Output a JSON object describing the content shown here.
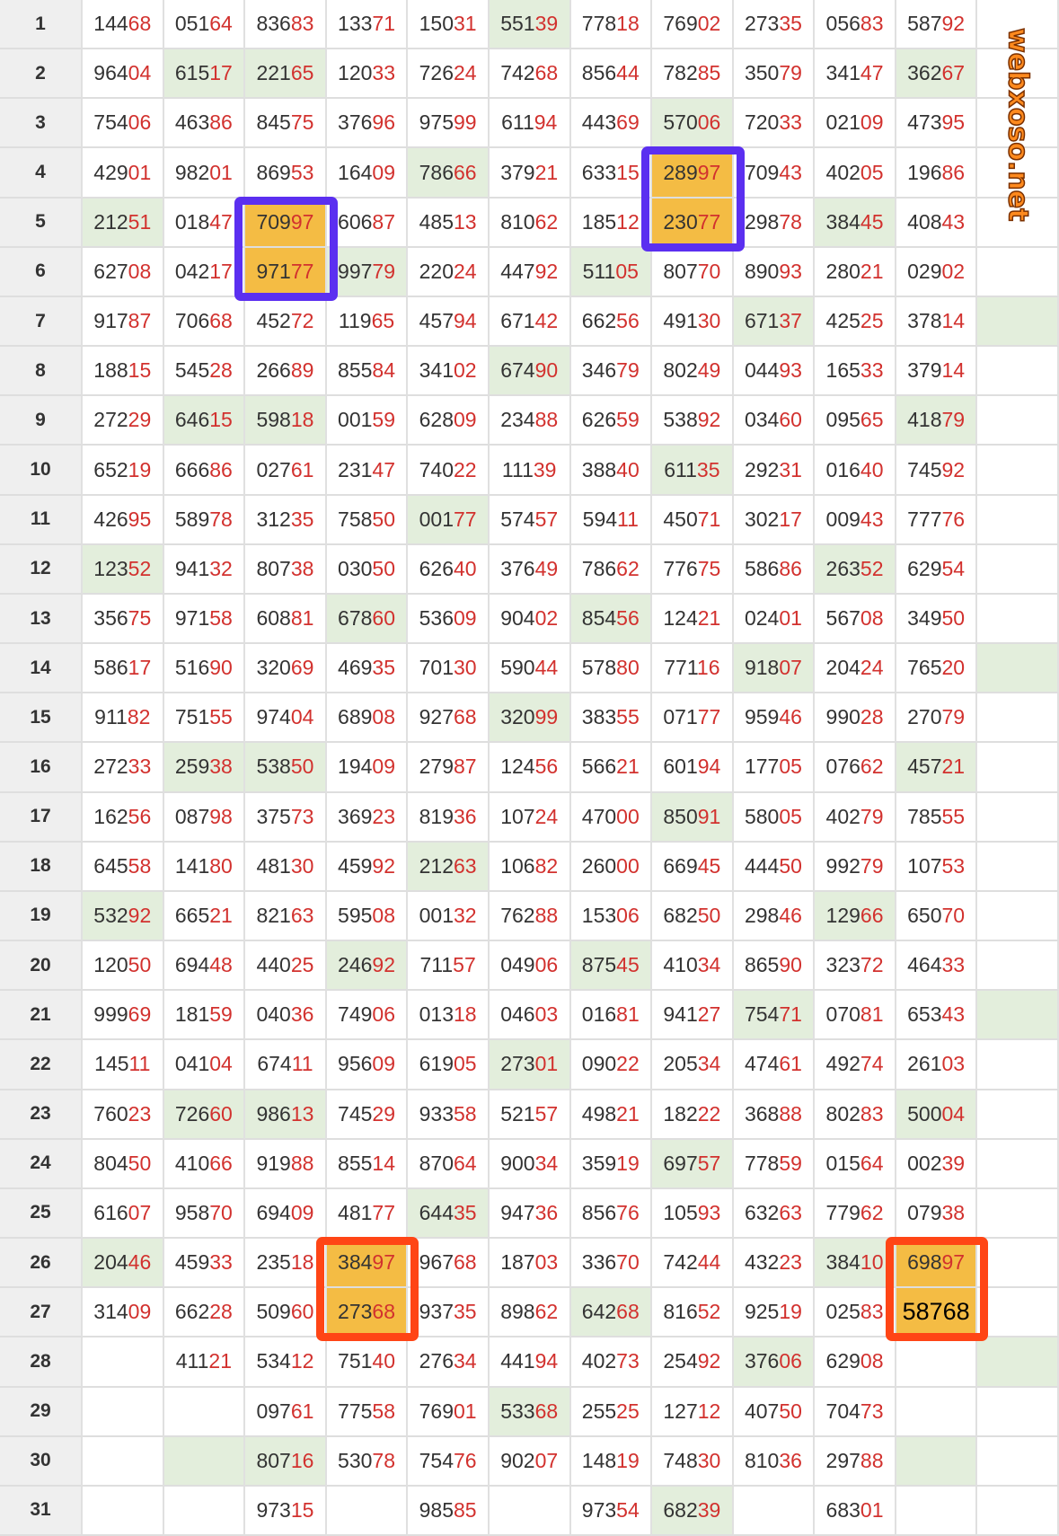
{
  "watermark": "webxoso.net",
  "colors": {
    "green_cell": "#e3eedc",
    "highlight": "#f4bc44",
    "blue_box": "#5b2ff0",
    "orange_box": "#ff4515",
    "last_two_digits": "#d2312e"
  },
  "rows": [
    {
      "label": "1",
      "cells": [
        "14468",
        "05164",
        "83683",
        "13371",
        "15031",
        "55139",
        "77818",
        "76902",
        "27335",
        "05683",
        "58792",
        ""
      ],
      "green": [
        6
      ]
    },
    {
      "label": "2",
      "cells": [
        "96404",
        "61517",
        "22165",
        "12033",
        "72624",
        "74268",
        "85644",
        "78285",
        "35079",
        "34147",
        "36267",
        ""
      ],
      "green": [
        2,
        3,
        11
      ]
    },
    {
      "label": "3",
      "cells": [
        "75406",
        "46386",
        "84575",
        "37696",
        "97599",
        "61194",
        "44369",
        "57006",
        "72033",
        "02109",
        "47395",
        ""
      ],
      "green": [
        8
      ]
    },
    {
      "label": "4",
      "cells": [
        "42901",
        "98201",
        "86953",
        "16409",
        "78666",
        "37921",
        "63315",
        "28997",
        "70943",
        "40205",
        "19686",
        ""
      ],
      "green": [
        5
      ]
    },
    {
      "label": "5",
      "cells": [
        "21251",
        "01847",
        "70997",
        "60687",
        "48513",
        "81062",
        "18512",
        "23077",
        "29878",
        "38445",
        "40843",
        ""
      ],
      "green": [
        1,
        10
      ]
    },
    {
      "label": "6",
      "cells": [
        "62708",
        "04217",
        "97177",
        "99779",
        "22024",
        "44792",
        "51105",
        "80770",
        "89093",
        "28021",
        "02902",
        ""
      ],
      "green": [
        4,
        7
      ]
    },
    {
      "label": "7",
      "cells": [
        "91787",
        "70668",
        "45272",
        "11965",
        "45794",
        "67142",
        "66256",
        "49130",
        "67137",
        "42525",
        "37814",
        ""
      ],
      "green": [
        9,
        12
      ]
    },
    {
      "label": "8",
      "cells": [
        "18815",
        "54528",
        "26689",
        "85584",
        "34102",
        "67490",
        "34679",
        "80249",
        "04493",
        "16533",
        "37914",
        ""
      ],
      "green": [
        6
      ]
    },
    {
      "label": "9",
      "cells": [
        "27229",
        "64615",
        "59818",
        "00159",
        "62809",
        "23488",
        "62659",
        "53892",
        "03460",
        "09565",
        "41879",
        ""
      ],
      "green": [
        2,
        3,
        11
      ]
    },
    {
      "label": "10",
      "cells": [
        "65219",
        "66686",
        "02761",
        "23147",
        "74022",
        "11139",
        "38840",
        "61135",
        "29231",
        "01640",
        "74592",
        ""
      ],
      "green": [
        8
      ]
    },
    {
      "label": "11",
      "cells": [
        "42695",
        "58978",
        "31235",
        "75850",
        "00177",
        "57457",
        "59411",
        "45071",
        "30217",
        "00943",
        "77776",
        ""
      ],
      "green": [
        5
      ]
    },
    {
      "label": "12",
      "cells": [
        "12352",
        "94132",
        "80738",
        "03050",
        "62640",
        "37649",
        "78662",
        "77675",
        "58686",
        "26352",
        "62954",
        ""
      ],
      "green": [
        1,
        10
      ]
    },
    {
      "label": "13",
      "cells": [
        "35675",
        "97158",
        "60881",
        "67860",
        "53609",
        "90402",
        "85456",
        "12421",
        "02401",
        "56708",
        "34950",
        ""
      ],
      "green": [
        4,
        7
      ]
    },
    {
      "label": "14",
      "cells": [
        "58617",
        "51690",
        "32069",
        "46935",
        "70130",
        "59044",
        "57880",
        "77116",
        "91807",
        "20424",
        "76520",
        ""
      ],
      "green": [
        9,
        12
      ]
    },
    {
      "label": "15",
      "cells": [
        "91182",
        "75155",
        "97404",
        "68908",
        "92768",
        "32099",
        "38355",
        "07177",
        "95946",
        "99028",
        "27079",
        ""
      ],
      "green": [
        6
      ]
    },
    {
      "label": "16",
      "cells": [
        "27233",
        "25938",
        "53850",
        "19409",
        "27987",
        "12456",
        "56621",
        "60194",
        "17705",
        "07662",
        "45721",
        ""
      ],
      "green": [
        2,
        3,
        11
      ]
    },
    {
      "label": "17",
      "cells": [
        "16256",
        "08798",
        "37573",
        "36923",
        "81936",
        "10724",
        "47000",
        "85091",
        "58005",
        "40279",
        "78555",
        ""
      ],
      "green": [
        8
      ]
    },
    {
      "label": "18",
      "cells": [
        "64558",
        "14180",
        "48130",
        "45992",
        "21263",
        "10682",
        "26000",
        "66945",
        "44450",
        "99279",
        "10753",
        ""
      ],
      "green": [
        5
      ]
    },
    {
      "label": "19",
      "cells": [
        "53292",
        "66521",
        "82163",
        "59508",
        "00132",
        "76288",
        "15306",
        "68250",
        "29846",
        "12966",
        "65070",
        ""
      ],
      "green": [
        1,
        10
      ]
    },
    {
      "label": "20",
      "cells": [
        "12050",
        "69448",
        "44025",
        "24692",
        "71157",
        "04906",
        "87545",
        "41034",
        "86590",
        "32372",
        "46433",
        ""
      ],
      "green": [
        4,
        7
      ]
    },
    {
      "label": "21",
      "cells": [
        "99969",
        "18159",
        "04036",
        "74906",
        "01318",
        "04603",
        "01681",
        "94127",
        "75471",
        "07081",
        "65343",
        ""
      ],
      "green": [
        9,
        12
      ]
    },
    {
      "label": "22",
      "cells": [
        "14511",
        "04104",
        "67411",
        "95609",
        "61905",
        "27301",
        "09022",
        "20534",
        "47461",
        "49274",
        "26103",
        ""
      ],
      "green": [
        6
      ]
    },
    {
      "label": "23",
      "cells": [
        "76023",
        "72660",
        "98613",
        "74529",
        "93358",
        "52157",
        "49821",
        "18222",
        "36888",
        "80283",
        "50004",
        ""
      ],
      "green": [
        2,
        3,
        11
      ]
    },
    {
      "label": "24",
      "cells": [
        "80450",
        "41066",
        "91988",
        "85514",
        "87064",
        "90034",
        "35919",
        "69757",
        "77859",
        "01564",
        "00239",
        ""
      ],
      "green": [
        8
      ]
    },
    {
      "label": "25",
      "cells": [
        "61607",
        "95870",
        "69409",
        "48177",
        "64435",
        "94736",
        "85676",
        "10593",
        "63263",
        "77962",
        "07938",
        ""
      ],
      "green": [
        5
      ]
    },
    {
      "label": "26",
      "cells": [
        "20446",
        "45933",
        "23518",
        "38497",
        "96768",
        "18703",
        "33670",
        "74244",
        "43223",
        "38410",
        "69897",
        ""
      ],
      "green": [
        1,
        10
      ]
    },
    {
      "label": "27",
      "cells": [
        "31409",
        "66228",
        "50960",
        "27368",
        "93735",
        "89862",
        "64268",
        "81652",
        "92519",
        "02583",
        "58768",
        ""
      ],
      "green": [
        7
      ]
    },
    {
      "label": "28",
      "cells": [
        "",
        "41121",
        "53412",
        "75140",
        "27634",
        "44194",
        "40273",
        "25492",
        "37606",
        "62908",
        "",
        ""
      ],
      "green": [
        9,
        12
      ]
    },
    {
      "label": "29",
      "cells": [
        "",
        "",
        "09761",
        "77558",
        "76901",
        "53368",
        "25525",
        "12712",
        "40750",
        "70473",
        "",
        ""
      ],
      "green": [
        6
      ]
    },
    {
      "label": "30",
      "cells": [
        "",
        "",
        "80716",
        "53078",
        "75476",
        "90207",
        "14819",
        "74830",
        "81036",
        "29788",
        "",
        ""
      ],
      "green": [
        2,
        3,
        11
      ]
    },
    {
      "label": "31",
      "cells": [
        "",
        "",
        "97315",
        "",
        "98585",
        "",
        "97354",
        "68239",
        "",
        "68301",
        "",
        ""
      ],
      "green": [
        8
      ]
    }
  ],
  "highlights": [
    {
      "color": "blue",
      "col": 3,
      "rows": [
        5,
        6
      ]
    },
    {
      "color": "blue",
      "col": 8,
      "rows": [
        4,
        5
      ]
    },
    {
      "color": "orange",
      "col": 4,
      "rows": [
        26,
        27
      ]
    },
    {
      "color": "orange",
      "col": 11,
      "rows": [
        26,
        27
      ]
    }
  ],
  "plain_black_cells": [
    [
      27,
      11
    ]
  ]
}
